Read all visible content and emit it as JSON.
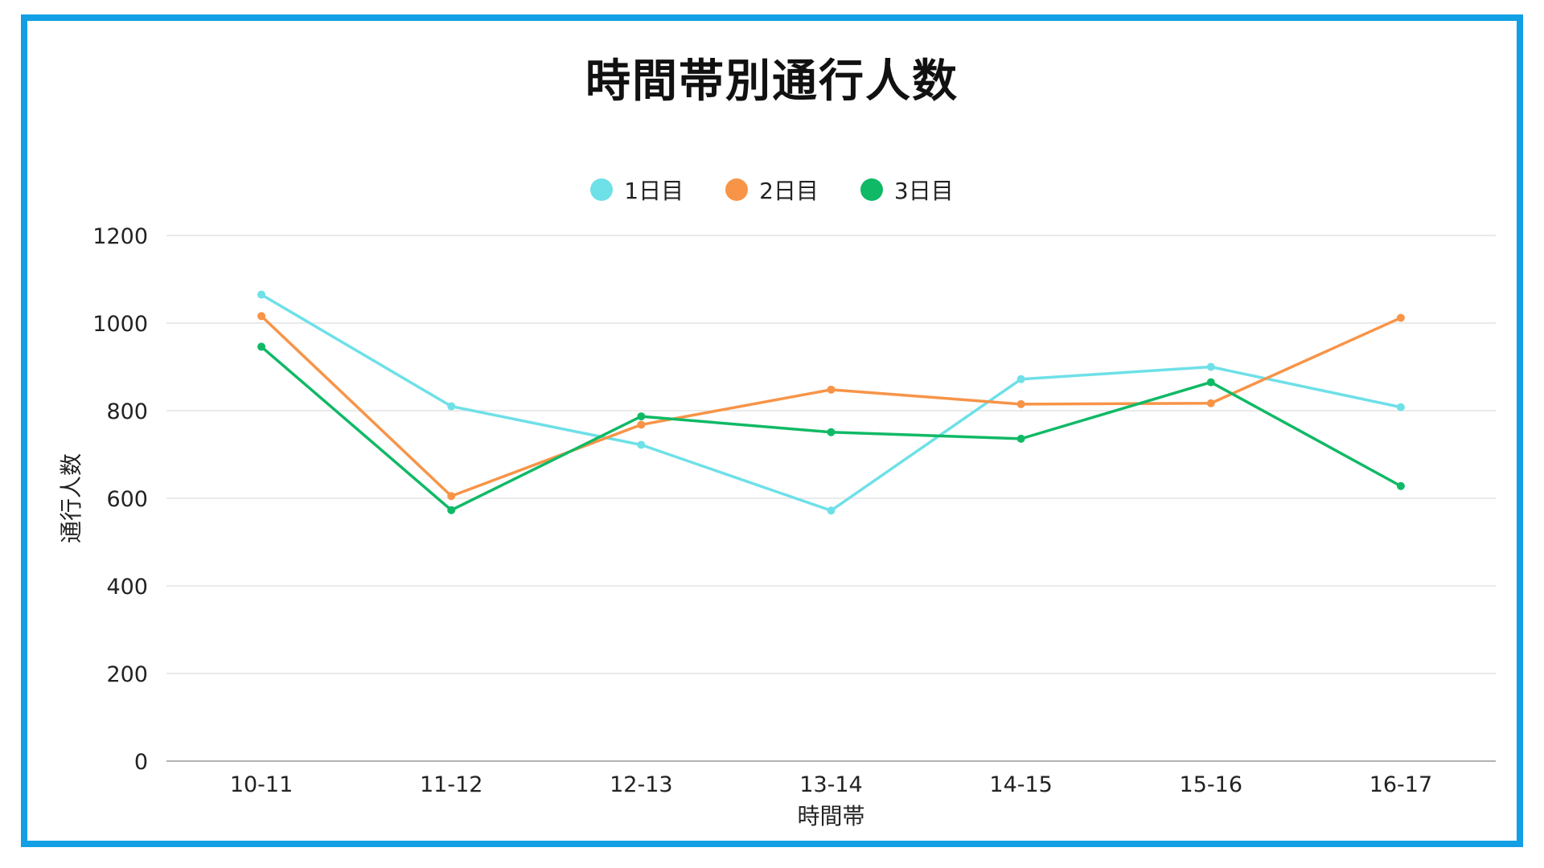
{
  "chart_data": {
    "type": "line",
    "title": "時間帯別通行人数",
    "xlabel": "時間帯",
    "ylabel": "通行人数",
    "categories": [
      "10-11",
      "11-12",
      "12-13",
      "13-14",
      "14-15",
      "15-16",
      "16-17"
    ],
    "ylim": [
      0,
      1200
    ],
    "yticks": [
      0,
      200,
      400,
      600,
      800,
      1000,
      1200
    ],
    "grid": true,
    "legend_position": "top-center",
    "series": [
      {
        "name": "1日目",
        "color": "#6ee0e8",
        "values": [
          1065,
          810,
          722,
          572,
          872,
          900,
          808
        ]
      },
      {
        "name": "2日目",
        "color": "#f79448",
        "values": [
          1016,
          605,
          768,
          848,
          815,
          817,
          1012
        ]
      },
      {
        "name": "3日目",
        "color": "#10b966",
        "values": [
          946,
          573,
          787,
          751,
          736,
          865,
          628
        ]
      }
    ]
  },
  "frame_color": "#129fe3"
}
